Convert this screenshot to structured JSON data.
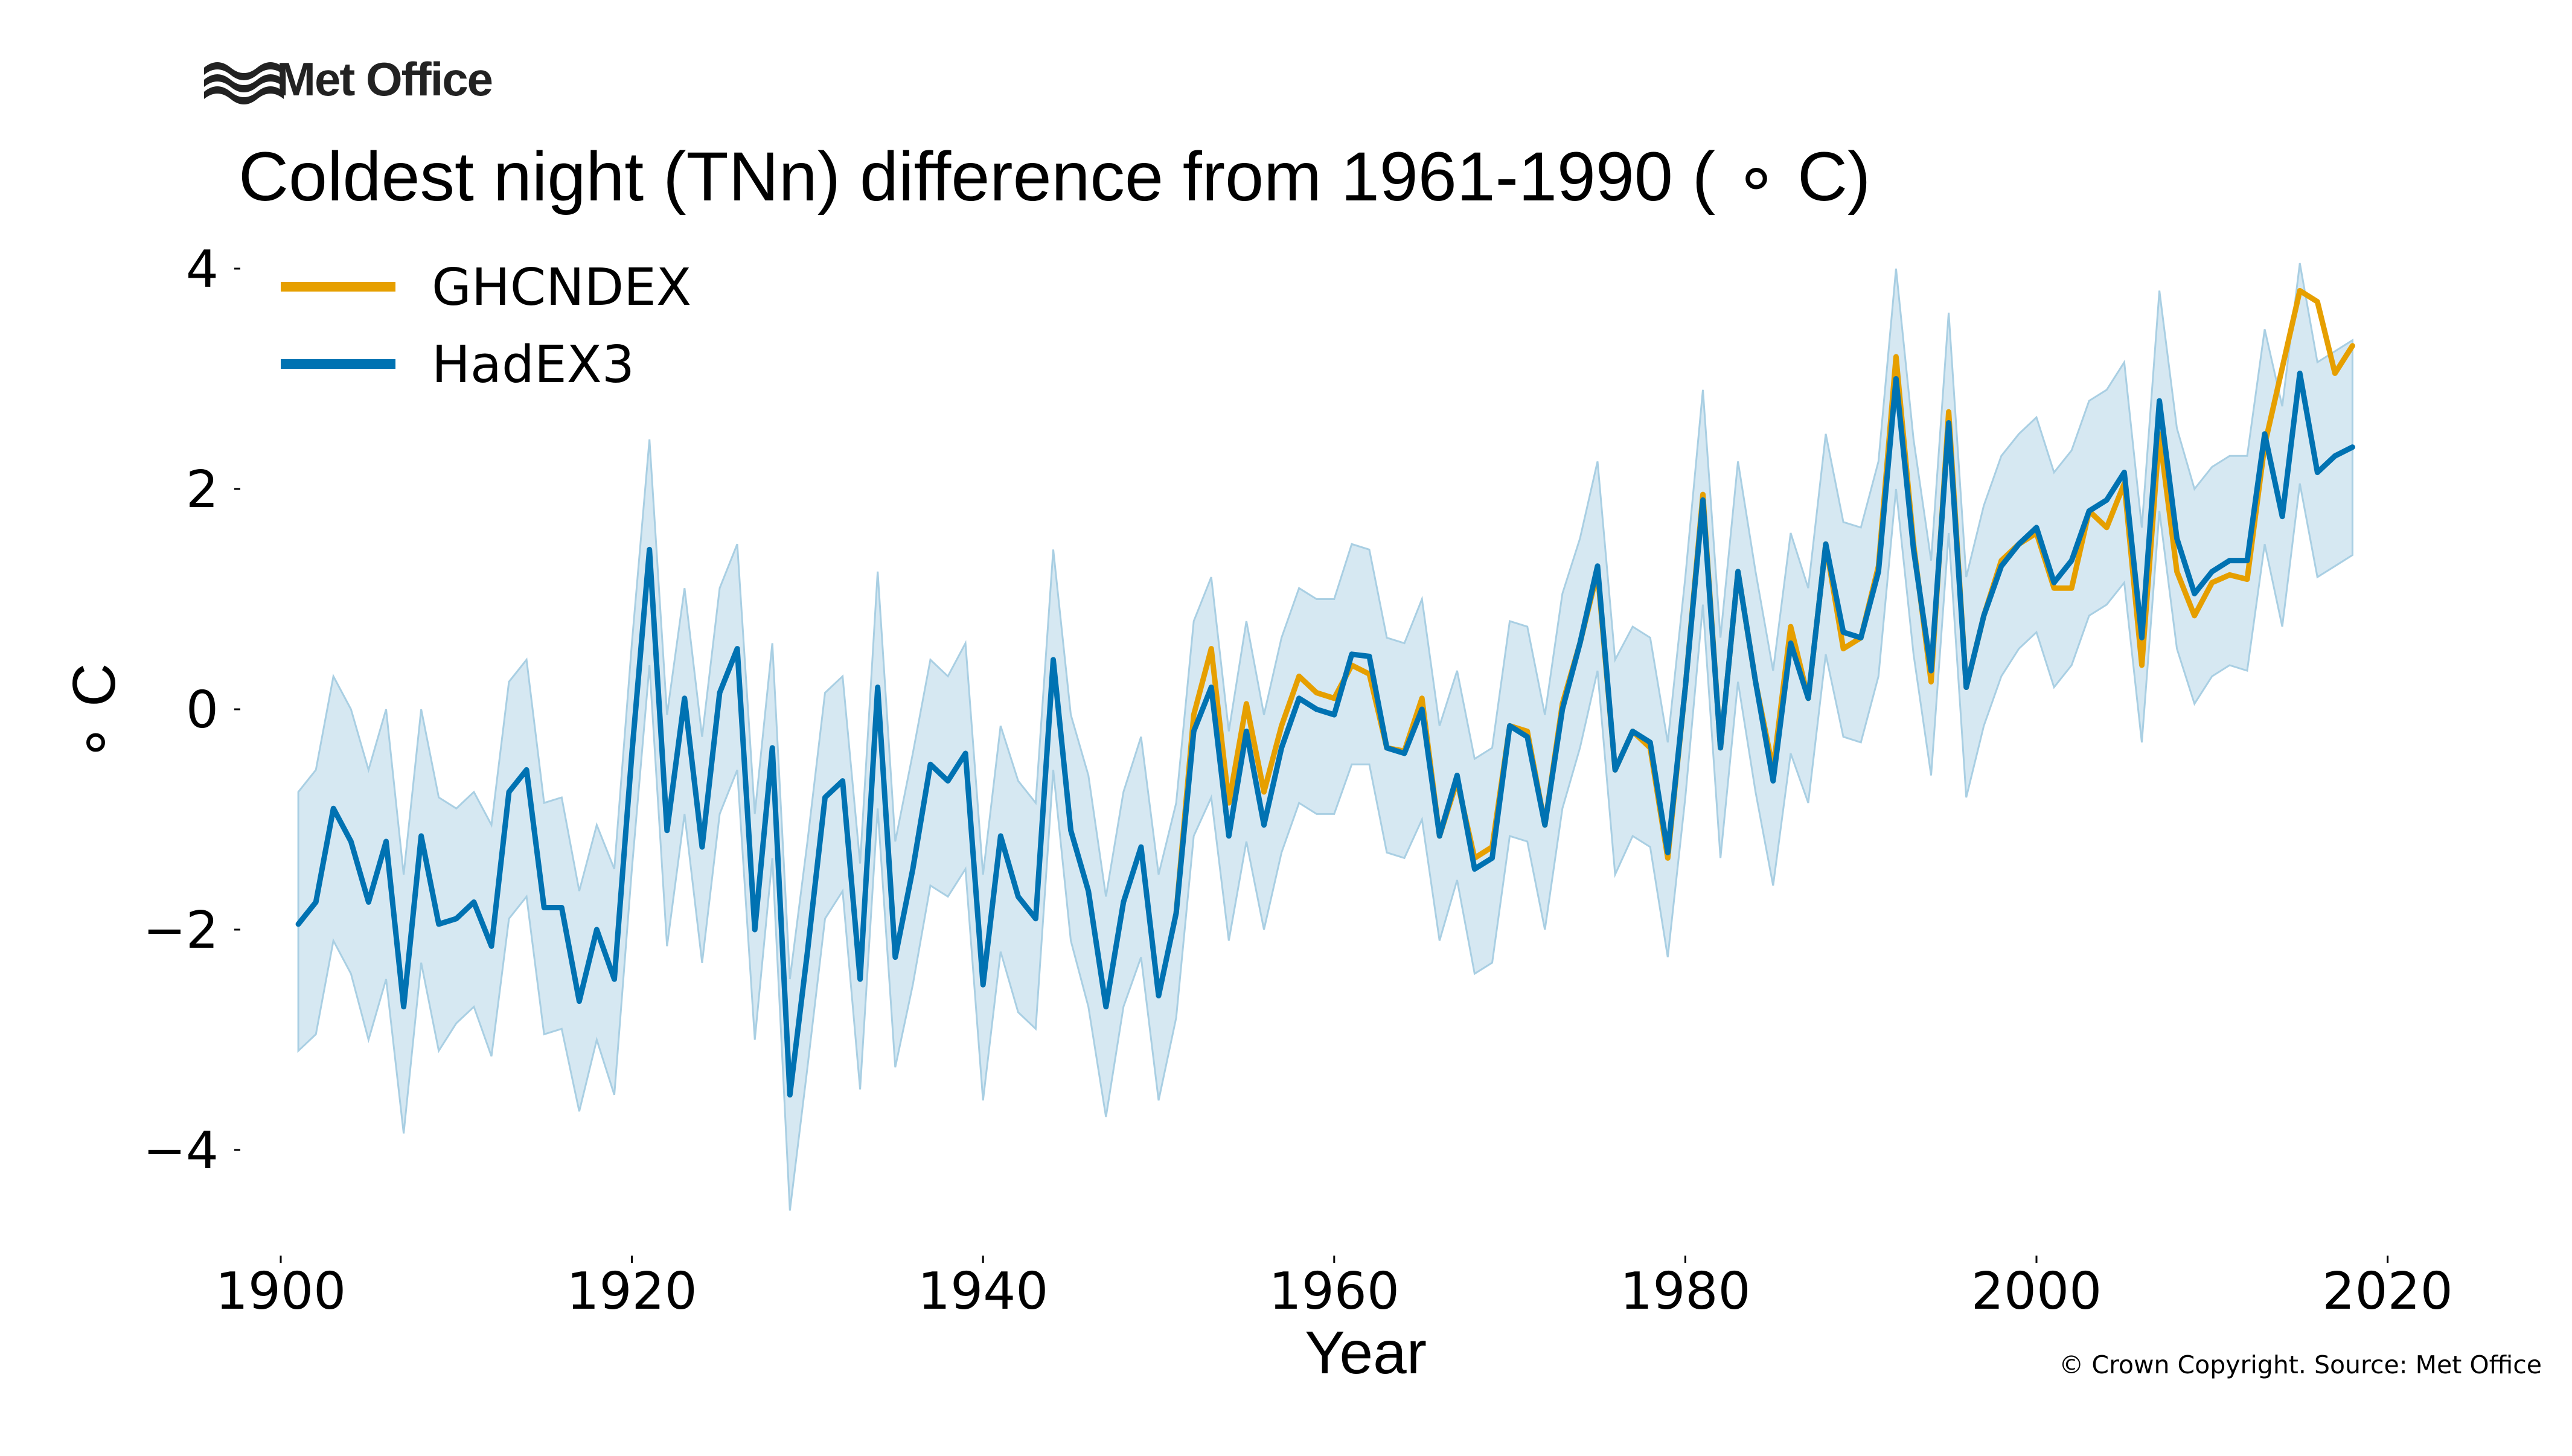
{
  "logo": {
    "text": "Met Office"
  },
  "copyright": "© Crown Copyright. Source: Met Office",
  "colors": {
    "ghcndex": "#e69f00",
    "hadex3": "#0072b2",
    "band": "#d6e8f2",
    "band_edge": "#a9cfe3"
  },
  "chart_data": {
    "type": "line",
    "title": "Coldest night (TNn) difference from 1961-1990 ( ∘ C)",
    "xlabel": "Year",
    "ylabel": "∘ C",
    "xlim": [
      1896,
      2020
    ],
    "ylim": [
      -4.8,
      4.4
    ],
    "xticks": [
      1900,
      1920,
      1940,
      1960,
      1980,
      2000,
      2020
    ],
    "xtick_labels": [
      "1900",
      "1920",
      "1940",
      "1960",
      "1980",
      "2000",
      "2020"
    ],
    "yticks": [
      4,
      2,
      0,
      -2,
      -4
    ],
    "ytick_labels": [
      "4",
      "2",
      "0",
      "−2",
      "−4"
    ],
    "grid": false,
    "legend_position": "top-left",
    "series": [
      {
        "name": "GHCNDEX",
        "color": "#e69f00",
        "x": [
          1951,
          1952,
          1953,
          1954,
          1955,
          1956,
          1957,
          1958,
          1959,
          1960,
          1961,
          1962,
          1963,
          1964,
          1965,
          1966,
          1967,
          1968,
          1969,
          1970,
          1971,
          1972,
          1973,
          1974,
          1975,
          1976,
          1977,
          1978,
          1979,
          1980,
          1981,
          1982,
          1983,
          1984,
          1985,
          1986,
          1987,
          1988,
          1989,
          1990,
          1991,
          1992,
          1993,
          1994,
          1995,
          1996,
          1997,
          1998,
          1999,
          2000,
          2001,
          2002,
          2003,
          2004,
          2005,
          2006,
          2007,
          2008,
          2009,
          2010,
          2011,
          2012,
          2013,
          2014,
          2015,
          2016,
          2017,
          2018
        ],
        "values": [
          -1.85,
          -0.05,
          0.55,
          -0.85,
          0.05,
          -0.75,
          -0.15,
          0.3,
          0.15,
          0.1,
          0.4,
          0.32,
          -0.35,
          -0.38,
          0.1,
          -1.15,
          -0.65,
          -1.35,
          -1.25,
          -0.15,
          -0.2,
          -1.05,
          0.05,
          0.6,
          1.25,
          -0.55,
          -0.2,
          -0.35,
          -1.35,
          0.2,
          1.95,
          -0.35,
          1.25,
          0.25,
          -0.55,
          0.75,
          0.1,
          1.5,
          0.55,
          0.65,
          1.3,
          3.2,
          1.5,
          0.25,
          2.7,
          0.2,
          0.85,
          1.35,
          1.5,
          1.6,
          1.1,
          1.1,
          1.8,
          1.65,
          2.05,
          0.4,
          2.5,
          1.25,
          0.85,
          1.15,
          1.22,
          1.18,
          2.4,
          3.1,
          3.8,
          3.7,
          3.05,
          3.3
        ]
      },
      {
        "name": "HadEX3",
        "color": "#0072b2",
        "x": [
          1901,
          1902,
          1903,
          1904,
          1905,
          1906,
          1907,
          1908,
          1909,
          1910,
          1911,
          1912,
          1913,
          1914,
          1915,
          1916,
          1917,
          1918,
          1919,
          1920,
          1921,
          1922,
          1923,
          1924,
          1925,
          1926,
          1927,
          1928,
          1929,
          1930,
          1931,
          1932,
          1933,
          1934,
          1935,
          1936,
          1937,
          1938,
          1939,
          1940,
          1941,
          1942,
          1943,
          1944,
          1945,
          1946,
          1947,
          1948,
          1949,
          1950,
          1951,
          1952,
          1953,
          1954,
          1955,
          1956,
          1957,
          1958,
          1959,
          1960,
          1961,
          1962,
          1963,
          1964,
          1965,
          1966,
          1967,
          1968,
          1969,
          1970,
          1971,
          1972,
          1973,
          1974,
          1975,
          1976,
          1977,
          1978,
          1979,
          1980,
          1981,
          1982,
          1983,
          1984,
          1985,
          1986,
          1987,
          1988,
          1989,
          1990,
          1991,
          1992,
          1993,
          1994,
          1995,
          1996,
          1997,
          1998,
          1999,
          2000,
          2001,
          2002,
          2003,
          2004,
          2005,
          2006,
          2007,
          2008,
          2009,
          2010,
          2011,
          2012,
          2013,
          2014,
          2015,
          2016,
          2017,
          2018
        ],
        "values": [
          -1.95,
          -1.75,
          -0.9,
          -1.2,
          -1.75,
          -1.2,
          -2.7,
          -1.15,
          -1.95,
          -1.9,
          -1.75,
          -2.15,
          -0.75,
          -0.55,
          -1.8,
          -1.8,
          -2.65,
          -2.0,
          -2.45,
          -0.4,
          1.45,
          -1.1,
          0.1,
          -1.25,
          0.15,
          0.55,
          -2.0,
          -0.35,
          -3.5,
          -2.2,
          -0.8,
          -0.65,
          -2.45,
          0.2,
          -2.25,
          -1.45,
          -0.5,
          -0.65,
          -0.4,
          -2.5,
          -1.15,
          -1.7,
          -1.9,
          0.45,
          -1.1,
          -1.65,
          -2.7,
          -1.75,
          -1.25,
          -2.6,
          -1.85,
          -0.2,
          0.2,
          -1.15,
          -0.2,
          -1.05,
          -0.35,
          0.1,
          0.0,
          -0.05,
          0.5,
          0.48,
          -0.35,
          -0.4,
          0.0,
          -1.15,
          -0.6,
          -1.45,
          -1.35,
          -0.15,
          -0.25,
          -1.05,
          0.0,
          0.6,
          1.3,
          -0.55,
          -0.2,
          -0.3,
          -1.3,
          0.2,
          1.9,
          -0.35,
          1.25,
          0.25,
          -0.65,
          0.6,
          0.1,
          1.5,
          0.7,
          0.65,
          1.25,
          3.0,
          1.45,
          0.35,
          2.6,
          0.2,
          0.85,
          1.3,
          1.5,
          1.65,
          1.15,
          1.35,
          1.8,
          1.9,
          2.15,
          0.65,
          2.8,
          1.55,
          1.05,
          1.25,
          1.35,
          1.35,
          2.5,
          1.75,
          3.05,
          2.15,
          2.3,
          2.38
        ]
      }
    ],
    "uncertainty_band": {
      "series": "HadEX3",
      "x": [
        1901,
        1902,
        1903,
        1904,
        1905,
        1906,
        1907,
        1908,
        1909,
        1910,
        1911,
        1912,
        1913,
        1914,
        1915,
        1916,
        1917,
        1918,
        1919,
        1920,
        1921,
        1922,
        1923,
        1924,
        1925,
        1926,
        1927,
        1928,
        1929,
        1930,
        1931,
        1932,
        1933,
        1934,
        1935,
        1936,
        1937,
        1938,
        1939,
        1940,
        1941,
        1942,
        1943,
        1944,
        1945,
        1946,
        1947,
        1948,
        1949,
        1950,
        1951,
        1952,
        1953,
        1954,
        1955,
        1956,
        1957,
        1958,
        1959,
        1960,
        1961,
        1962,
        1963,
        1964,
        1965,
        1966,
        1967,
        1968,
        1969,
        1970,
        1971,
        1972,
        1973,
        1974,
        1975,
        1976,
        1977,
        1978,
        1979,
        1980,
        1981,
        1982,
        1983,
        1984,
        1985,
        1986,
        1987,
        1988,
        1989,
        1990,
        1991,
        1992,
        1993,
        1994,
        1995,
        1996,
        1997,
        1998,
        1999,
        2000,
        2001,
        2002,
        2003,
        2004,
        2005,
        2006,
        2007,
        2008,
        2009,
        2010,
        2011,
        2012,
        2013,
        2014,
        2015,
        2016,
        2017,
        2018
      ],
      "upper": [
        -0.75,
        -0.55,
        0.3,
        0.0,
        -0.55,
        0.0,
        -1.5,
        0.0,
        -0.8,
        -0.9,
        -0.75,
        -1.05,
        0.25,
        0.45,
        -0.85,
        -0.8,
        -1.65,
        -1.05,
        -1.45,
        0.6,
        2.45,
        -0.05,
        1.1,
        -0.25,
        1.1,
        1.5,
        -0.95,
        0.6,
        -2.45,
        -1.2,
        0.15,
        0.3,
        -1.4,
        1.25,
        -1.2,
        -0.4,
        0.45,
        0.3,
        0.6,
        -1.5,
        -0.15,
        -0.65,
        -0.85,
        1.45,
        -0.05,
        -0.6,
        -1.7,
        -0.75,
        -0.25,
        -1.5,
        -0.85,
        0.8,
        1.2,
        -0.2,
        0.8,
        -0.05,
        0.65,
        1.1,
        1.0,
        1.0,
        1.5,
        1.45,
        0.65,
        0.6,
        1.0,
        -0.15,
        0.35,
        -0.45,
        -0.35,
        0.8,
        0.75,
        -0.05,
        1.05,
        1.55,
        2.25,
        0.45,
        0.75,
        0.65,
        -0.3,
        1.2,
        2.9,
        0.65,
        2.25,
        1.25,
        0.35,
        1.6,
        1.1,
        2.5,
        1.7,
        1.65,
        2.25,
        4.0,
        2.45,
        1.35,
        3.6,
        1.2,
        1.85,
        2.3,
        2.5,
        2.65,
        2.15,
        2.35,
        2.8,
        2.9,
        3.15,
        1.65,
        3.8,
        2.55,
        2.0,
        2.2,
        2.3,
        2.3,
        3.45,
        2.75,
        4.05,
        3.15,
        3.25,
        3.35
      ],
      "lower": [
        -3.1,
        -2.95,
        -2.1,
        -2.4,
        -3.0,
        -2.45,
        -3.85,
        -2.3,
        -3.1,
        -2.85,
        -2.7,
        -3.15,
        -1.9,
        -1.7,
        -2.95,
        -2.9,
        -3.65,
        -3.0,
        -3.5,
        -1.45,
        0.4,
        -2.15,
        -0.95,
        -2.3,
        -0.95,
        -0.55,
        -3.0,
        -1.35,
        -4.55,
        -3.25,
        -1.9,
        -1.65,
        -3.45,
        -0.9,
        -3.25,
        -2.5,
        -1.6,
        -1.7,
        -1.45,
        -3.55,
        -2.2,
        -2.75,
        -2.9,
        -0.55,
        -2.1,
        -2.7,
        -3.7,
        -2.7,
        -2.25,
        -3.55,
        -2.8,
        -1.15,
        -0.8,
        -2.1,
        -1.2,
        -2.0,
        -1.3,
        -0.85,
        -0.95,
        -0.95,
        -0.5,
        -0.5,
        -1.3,
        -1.35,
        -1.0,
        -2.1,
        -1.55,
        -2.4,
        -2.3,
        -1.15,
        -1.2,
        -2.0,
        -0.9,
        -0.35,
        0.35,
        -1.5,
        -1.15,
        -1.25,
        -2.25,
        -0.8,
        0.95,
        -1.35,
        0.25,
        -0.75,
        -1.6,
        -0.4,
        -0.85,
        0.5,
        -0.25,
        -0.3,
        0.3,
        2.0,
        0.5,
        -0.6,
        1.6,
        -0.8,
        -0.15,
        0.3,
        0.55,
        0.7,
        0.2,
        0.4,
        0.85,
        0.95,
        1.15,
        -0.3,
        1.8,
        0.55,
        0.05,
        0.3,
        0.4,
        0.35,
        1.5,
        0.75,
        2.05,
        1.2,
        1.3,
        1.4
      ]
    }
  }
}
